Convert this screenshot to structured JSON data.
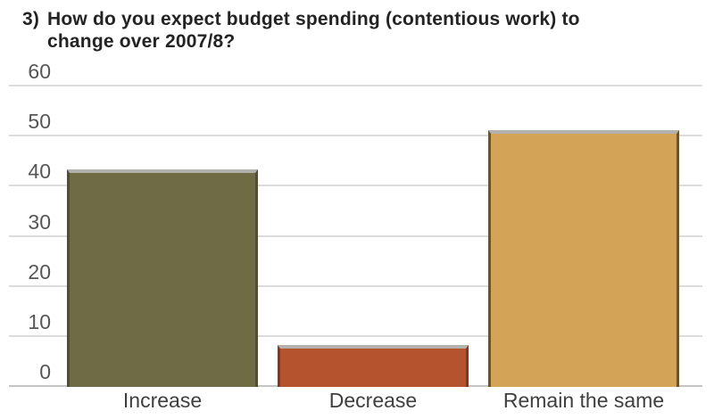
{
  "title": {
    "prefix": "3)",
    "line1": "How do you expect budget spending (contentious work) to",
    "line2": "change over 2007/8?"
  },
  "chart_data": {
    "type": "bar",
    "title": "3) How do you expect budget spending (contentious work) to change over 2007/8?",
    "categories": [
      "Increase",
      "Decrease",
      "Remain the same"
    ],
    "values": [
      43,
      8,
      51
    ],
    "xlabel": "",
    "ylabel": "",
    "ylim": [
      0,
      60
    ],
    "yticks": [
      0,
      10,
      20,
      30,
      40,
      50,
      60
    ],
    "grid": "horizontal",
    "legend": false,
    "bar_colors": [
      "#6F6B45",
      "#B5532F",
      "#D3A458"
    ],
    "bar_border_colors": [
      "#514E36",
      "#7D3A22",
      "#6B5425"
    ],
    "bar_top_edge_color": "#B3B1AE",
    "gridline_color": "#DCDCDC",
    "axis_line_color": "#C4C4C4",
    "ytick_label_color": "#565656",
    "xtick_label_color": "#3F3F3F",
    "title_color": "#232323"
  }
}
